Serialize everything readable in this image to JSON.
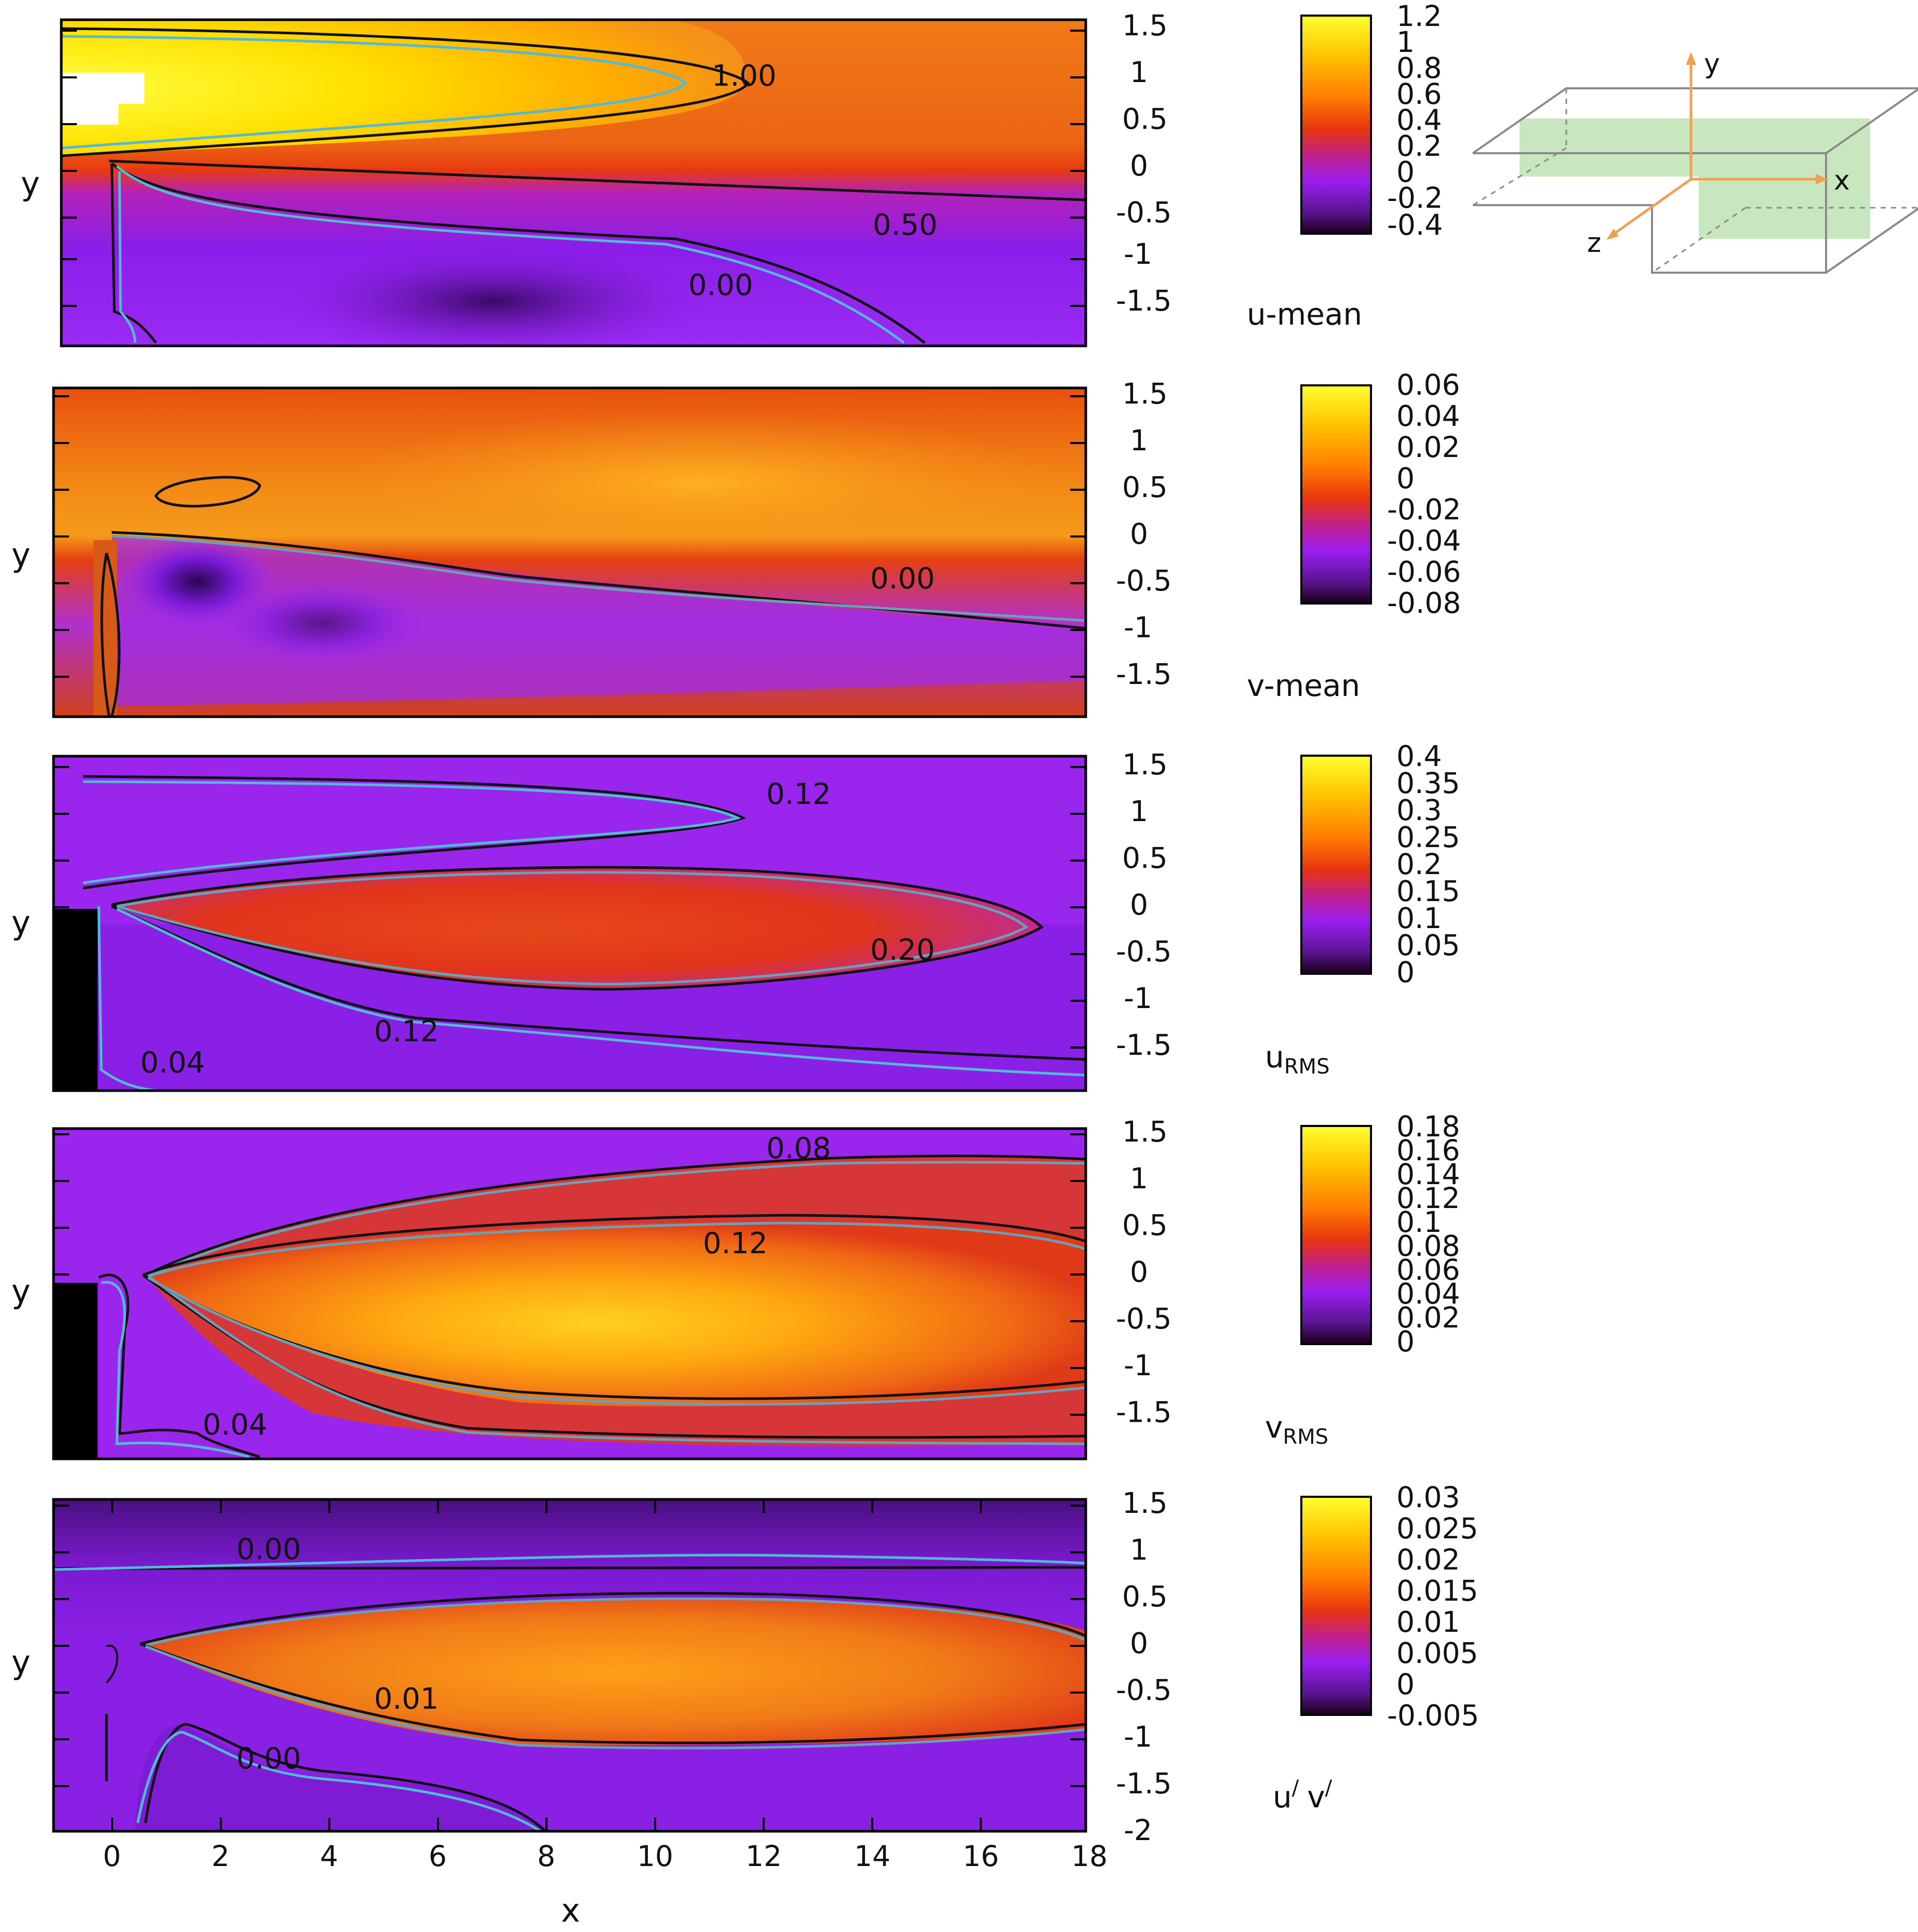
{
  "chart_data": {
    "type": "heatmap",
    "shared": {
      "xlabel": "x",
      "ylabel": "y",
      "x_ticks": [
        "0",
        "2",
        "4",
        "6",
        "8",
        "10",
        "12",
        "14",
        "16",
        "18"
      ],
      "x_range": [
        -1,
        18
      ]
    },
    "inset": {
      "axis_labels": [
        "y",
        "x",
        "z"
      ],
      "colors": {
        "axis": "#f0a050",
        "plane": "#bfe3b4",
        "frame": "#8a8a8a"
      }
    },
    "panels": [
      {
        "id": "u-mean",
        "title": "u-mean",
        "title_sub": "",
        "y_range": [
          -1.85,
          1.6
        ],
        "y_ticks": [
          "1.5",
          "1",
          "0.5",
          "0",
          "-0.5",
          "-1",
          "-1.5"
        ],
        "colorbar_ticks": [
          "1.2",
          "1",
          "0.8",
          "0.6",
          "0.4",
          "0.2",
          "0",
          "-0.2",
          "-0.4"
        ],
        "colorbar_range": [
          -0.4,
          1.2
        ],
        "contour_labels": [
          {
            "text": "1.00",
            "x": 11.7,
            "y": 0.95
          },
          {
            "text": "0.50",
            "x": 14.7,
            "y": -0.65
          },
          {
            "text": "0.00",
            "x": 11.2,
            "y": -1.3
          }
        ]
      },
      {
        "id": "v-mean",
        "title": "v-mean",
        "title_sub": "",
        "y_range": [
          -1.85,
          1.6
        ],
        "y_ticks": [
          "1.5",
          "1",
          "0.5",
          "0",
          "-0.5",
          "-1",
          "-1.5"
        ],
        "colorbar_ticks": [
          "0.06",
          "0.04",
          "0.02",
          "0",
          "-0.02",
          "-0.04",
          "-0.06",
          "-0.08"
        ],
        "colorbar_range": [
          -0.08,
          0.06
        ],
        "contour_labels": [
          {
            "text": "0.00",
            "x": 14.6,
            "y": -0.5
          }
        ]
      },
      {
        "id": "u-rms",
        "title": "u",
        "title_sub": "RMS",
        "y_range": [
          -1.85,
          1.6
        ],
        "y_ticks": [
          "1.5",
          "1",
          "0.5",
          "0",
          "-0.5",
          "-1",
          "-1.5"
        ],
        "colorbar_ticks": [
          "0.4",
          "0.35",
          "0.3",
          "0.25",
          "0.2",
          "0.15",
          "0.1",
          "0.05",
          "0"
        ],
        "colorbar_range": [
          0,
          0.4
        ],
        "contour_labels": [
          {
            "text": "0.12",
            "x": 12.9,
            "y": 1.15
          },
          {
            "text": "0.20",
            "x": 14.6,
            "y": -0.5
          },
          {
            "text": "0.12",
            "x": 5.5,
            "y": -1.35
          },
          {
            "text": "0.04",
            "x": 1.1,
            "y": -1.65
          }
        ]
      },
      {
        "id": "v-rms",
        "title": "v",
        "title_sub": "RMS",
        "y_range": [
          -1.85,
          1.6
        ],
        "y_ticks": [
          "1.5",
          "1",
          "0.5",
          "0",
          "-0.5",
          "-1",
          "-1.5"
        ],
        "colorbar_ticks": [
          "0.18",
          "0.16",
          "0.14",
          "0.12",
          "0.1",
          "0.08",
          "0.06",
          "0.04",
          "0.02",
          "0"
        ],
        "colorbar_range": [
          0,
          0.18
        ],
        "contour_labels": [
          {
            "text": "0.08",
            "x": 12.8,
            "y": 1.3
          },
          {
            "text": "0.12",
            "x": 11.6,
            "y": 0.3
          },
          {
            "text": "0.04",
            "x": 2.2,
            "y": -1.6
          }
        ]
      },
      {
        "id": "uv",
        "title": "u",
        "title_sub": "/",
        "title2": "v",
        "title2_sub": "/",
        "y_range": [
          -2,
          1.6
        ],
        "y_ticks": [
          "1.5",
          "1",
          "0.5",
          "0",
          "-0.5",
          "-1",
          "-1.5",
          "-2"
        ],
        "colorbar_ticks": [
          "0.03",
          "0.025",
          "0.02",
          "0.015",
          "0.01",
          "0.005",
          "0",
          "-0.005"
        ],
        "colorbar_range": [
          -0.005,
          0.03
        ],
        "contour_labels": [
          {
            "text": "0.00",
            "x": 2.9,
            "y": 1.0
          },
          {
            "text": "0.01",
            "x": 5.5,
            "y": -0.6
          },
          {
            "text": "0.00",
            "x": 2.9,
            "y": -1.25
          }
        ]
      }
    ]
  }
}
